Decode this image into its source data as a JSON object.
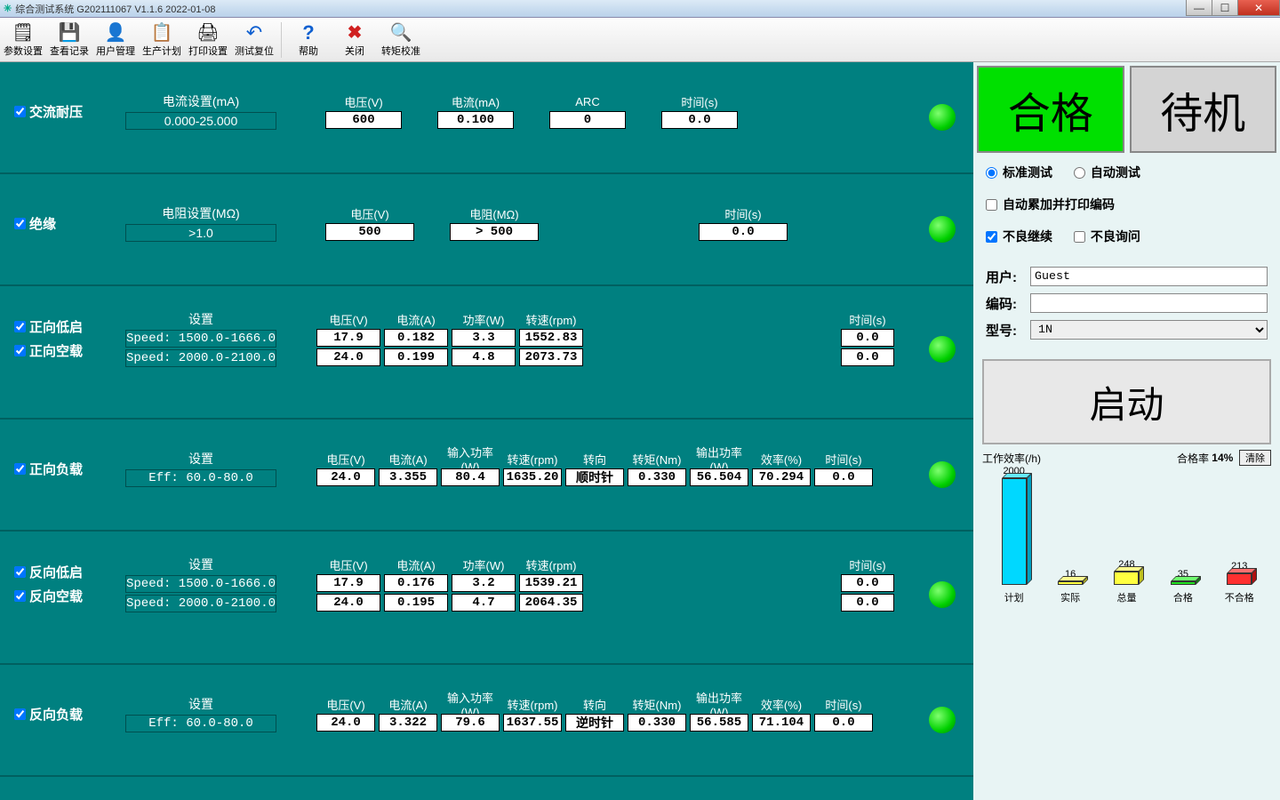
{
  "window": {
    "title": "综合测试系统 G202111067 V1.1.6 2022-01-08"
  },
  "toolbar": [
    {
      "id": "params",
      "label": "参数设置",
      "icon": "🗒"
    },
    {
      "id": "records",
      "label": "查看记录",
      "icon": "💾"
    },
    {
      "id": "users",
      "label": "用户管理",
      "icon": "👤"
    },
    {
      "id": "plan",
      "label": "生产计划",
      "icon": "📋"
    },
    {
      "id": "print",
      "label": "打印设置",
      "icon": "🖨"
    },
    {
      "id": "reset",
      "label": "测试复位",
      "icon": "↶"
    },
    {
      "sep": true
    },
    {
      "id": "help",
      "label": "帮助",
      "icon": "?"
    },
    {
      "id": "close",
      "label": "关闭",
      "icon": "✖"
    },
    {
      "id": "torque",
      "label": "转矩校准",
      "icon": "🔍"
    }
  ],
  "panels": {
    "acw": {
      "name": "交流耐压",
      "setting_label": "电流设置(mA)",
      "setting_val": "0.000-25.000",
      "cols": [
        {
          "h": "电压(V)",
          "v": "600"
        },
        {
          "h": "电流(mA)",
          "v": "0.100"
        },
        {
          "h": "ARC",
          "v": "0"
        },
        {
          "h": "时间(s)",
          "v": "0.0"
        }
      ]
    },
    "ir": {
      "name": "绝缘",
      "setting_label": "电阻设置(MΩ)",
      "setting_val": ">1.0",
      "cols": [
        {
          "h": "电压(V)",
          "v": "500"
        },
        {
          "h": "电阻(MΩ)",
          "v": "> 500"
        },
        {
          "h": "",
          "v": ""
        },
        {
          "h": "时间(s)",
          "v": "0.0"
        }
      ]
    },
    "fwd_lo_no": {
      "names": [
        "正向低启",
        "正向空载"
      ],
      "setting_label": "设置",
      "settings": [
        "Speed:  1500.0-1666.0",
        "Speed:  2000.0-2100.0"
      ],
      "headers": [
        "电压(V)",
        "电流(A)",
        "功率(W)",
        "转速(rpm)"
      ],
      "rows": [
        [
          "17.9",
          "0.182",
          "3.3",
          "1552.83"
        ],
        [
          "24.0",
          "0.199",
          "4.8",
          "2073.73"
        ]
      ],
      "time_h": "时间(s)",
      "times": [
        "0.0",
        "0.0"
      ]
    },
    "fwd_load": {
      "name": "正向负载",
      "setting_label": "设置",
      "setting_val": "Eff:   60.0-80.0",
      "headers": [
        "电压(V)",
        "电流(A)",
        "输入功率(W)",
        "转速(rpm)",
        "转向",
        "转矩(Nm)",
        "输出功率(W)",
        "效率(%)",
        "时间(s)"
      ],
      "vals": [
        "24.0",
        "3.355",
        "80.4",
        "1635.20",
        "顺时针",
        "0.330",
        "56.504",
        "70.294",
        "0.0"
      ]
    },
    "rev_lo_no": {
      "names": [
        "反向低启",
        "反向空载"
      ],
      "setting_label": "设置",
      "settings": [
        "Speed:  1500.0-1666.0",
        "Speed:  2000.0-2100.0"
      ],
      "headers": [
        "电压(V)",
        "电流(A)",
        "功率(W)",
        "转速(rpm)"
      ],
      "rows": [
        [
          "17.9",
          "0.176",
          "3.2",
          "1539.21"
        ],
        [
          "24.0",
          "0.195",
          "4.7",
          "2064.35"
        ]
      ],
      "time_h": "时间(s)",
      "times": [
        "0.0",
        "0.0"
      ]
    },
    "rev_load": {
      "name": "反向负载",
      "setting_label": "设置",
      "setting_val": "Eff:   60.0-80.0",
      "headers": [
        "电压(V)",
        "电流(A)",
        "输入功率(W)",
        "转速(rpm)",
        "转向",
        "转矩(Nm)",
        "输出功率(W)",
        "效率(%)",
        "时间(s)"
      ],
      "vals": [
        "24.0",
        "3.322",
        "79.6",
        "1637.55",
        "逆时针",
        "0.330",
        "56.585",
        "71.104",
        "0.0"
      ]
    }
  },
  "side": {
    "status_pass": "合格",
    "status_idle": "待机",
    "mode_std": "标准测试",
    "mode_auto": "自动测试",
    "auto_print": "自动累加并打印编码",
    "ng_continue": "不良继续",
    "ng_ask": "不良询问",
    "user_label": "用户:",
    "user_val": "Guest",
    "code_label": "编码:",
    "code_val": "",
    "model_label": "型号:",
    "model_val": "1N",
    "start": "启动",
    "eff_label": "工作效率(/h)",
    "pass_label": "合格率",
    "pass_rate": "14%",
    "clear": "清除",
    "chart": {
      "max": 2000,
      "bars": [
        {
          "label": "计划",
          "val": 2000,
          "color": "#00d8ff",
          "top": "#66eaff",
          "side": "#00a0c0"
        },
        {
          "label": "实际",
          "val": 16,
          "color": "#ffff40",
          "top": "#ffff90",
          "side": "#c0c020"
        },
        {
          "label": "总量",
          "val": 248,
          "color": "#ffff40",
          "top": "#ffff90",
          "side": "#c0c020"
        },
        {
          "label": "合格",
          "val": 35,
          "color": "#20e020",
          "top": "#70ff70",
          "side": "#109010"
        },
        {
          "label": "不合格",
          "val": 213,
          "color": "#ff3030",
          "top": "#ff7070",
          "side": "#b01010"
        }
      ]
    }
  }
}
